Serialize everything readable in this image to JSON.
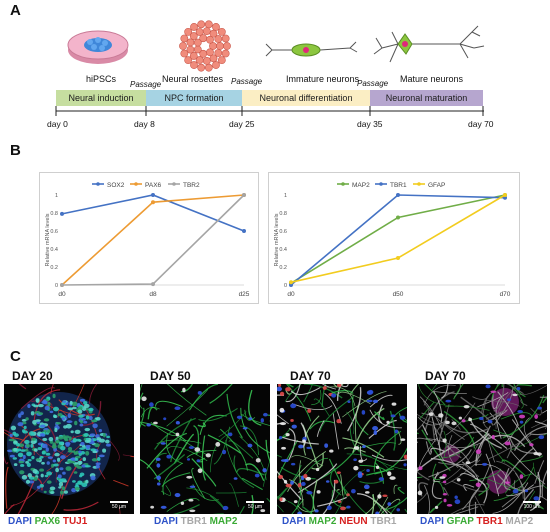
{
  "panels": {
    "a": "A",
    "b": "B",
    "c": "C"
  },
  "timeline": {
    "stages": [
      {
        "label": "hiPSCs"
      },
      {
        "label": "Neural rosettes"
      },
      {
        "label": "Immature neurons"
      },
      {
        "label": "Mature neurons"
      }
    ],
    "passage": "Passage",
    "phases": [
      {
        "label": "Neural induction",
        "color": "#c6dea0"
      },
      {
        "label": "NPC formation",
        "color": "#a6d3e3"
      },
      {
        "label": "Neuronal differentiation",
        "color": "#fbeec4"
      },
      {
        "label": "Neuronal maturation",
        "color": "#b6a6cf"
      }
    ],
    "days": [
      "day 0",
      "day 8",
      "day 25",
      "day 35",
      "day 70"
    ]
  },
  "chart_data": [
    {
      "type": "line",
      "categories": [
        "d0",
        "d8",
        "d25"
      ],
      "ylabel": "Relative mRNA levels",
      "ylim": [
        0,
        1
      ],
      "yticks": [
        "0",
        "0.2",
        "0.4",
        "0.6",
        "0.8",
        "1"
      ],
      "legend_position": "top",
      "series": [
        {
          "name": "SOX2",
          "color": "#4472c4",
          "values": [
            0.79,
            1.0,
            0.6
          ]
        },
        {
          "name": "PAX6",
          "color": "#ed9b33",
          "values": [
            0.0,
            0.92,
            1.0
          ]
        },
        {
          "name": "TBR2",
          "color": "#a5a5a5",
          "values": [
            0.0,
            0.01,
            1.0
          ]
        }
      ]
    },
    {
      "type": "line",
      "categories": [
        "d0",
        "d50",
        "d70"
      ],
      "ylabel": "Relative mRNA levels",
      "ylim": [
        0,
        1
      ],
      "yticks": [
        "0",
        "0.2",
        "0.4",
        "0.6",
        "0.8",
        "1"
      ],
      "legend_position": "top",
      "series": [
        {
          "name": "MAP2",
          "color": "#70ad47",
          "values": [
            0.02,
            0.75,
            1.0
          ]
        },
        {
          "name": "TBR1",
          "color": "#4472c4",
          "values": [
            0.0,
            1.0,
            0.97
          ]
        },
        {
          "name": "GFAP",
          "color": "#f2cc1f",
          "values": [
            0.03,
            0.3,
            1.0
          ]
        }
      ]
    }
  ],
  "micrographs": [
    {
      "day": "DAY 20",
      "scale": "50 µm",
      "stains": [
        {
          "text": "DAPI",
          "color": "#2f53c8"
        },
        {
          "text": "PAX6",
          "color": "#3aaa35"
        },
        {
          "text": "TUJ1",
          "color": "#d62020"
        }
      ]
    },
    {
      "day": "DAY 50",
      "scale": "50 µm",
      "stains": [
        {
          "text": "DAPI",
          "color": "#2f53c8"
        },
        {
          "text": "TBR1",
          "color": "#a8a8a8"
        },
        {
          "text": "MAP2",
          "color": "#3aaa35"
        }
      ]
    },
    {
      "day": "DAY 70",
      "scale": "",
      "stains": [
        {
          "text": "DAPI",
          "color": "#2f53c8"
        },
        {
          "text": "MAP2",
          "color": "#3aaa35"
        },
        {
          "text": "NEUN",
          "color": "#d62020"
        },
        {
          "text": "TBR1",
          "color": "#a8a8a8"
        }
      ]
    },
    {
      "day": "DAY 70",
      "scale": "100 µm",
      "stains": [
        {
          "text": "DAPI",
          "color": "#2f53c8"
        },
        {
          "text": "GFAP",
          "color": "#3aaa35"
        },
        {
          "text": "TBR1",
          "color": "#d62020"
        },
        {
          "text": "MAP2",
          "color": "#a8a8a8"
        }
      ]
    }
  ]
}
